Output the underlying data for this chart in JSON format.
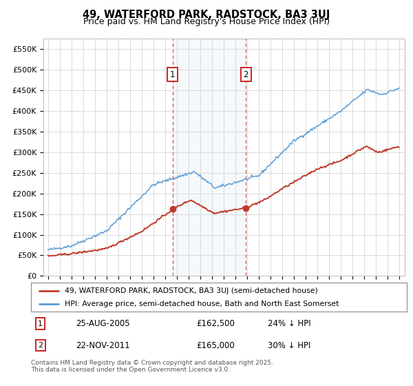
{
  "title_line1": "49, WATERFORD PARK, RADSTOCK, BA3 3UJ",
  "title_line2": "Price paid vs. HM Land Registry's House Price Index (HPI)",
  "ylim": [
    0,
    575000
  ],
  "yticks": [
    0,
    50000,
    100000,
    150000,
    200000,
    250000,
    300000,
    350000,
    400000,
    450000,
    500000,
    550000
  ],
  "ytick_labels": [
    "£0",
    "£50K",
    "£100K",
    "£150K",
    "£200K",
    "£250K",
    "£300K",
    "£350K",
    "£400K",
    "£450K",
    "£500K",
    "£550K"
  ],
  "hpi_color": "#5b9bd5",
  "price_color": "#c0392b",
  "marker1_year": 2005.64,
  "marker1_value": 162500,
  "marker2_year": 2011.91,
  "marker2_value": 165000,
  "legend_label1": "49, WATERFORD PARK, RADSTOCK, BA3 3UJ (semi-detached house)",
  "legend_label2": "HPI: Average price, semi-detached house, Bath and North East Somerset",
  "footer": "Contains HM Land Registry data © Crown copyright and database right 2025.\nThis data is licensed under the Open Government Licence v3.0.",
  "background_color": "#ffffff",
  "grid_color": "#cccccc",
  "shade_color": "#dbeaf7"
}
